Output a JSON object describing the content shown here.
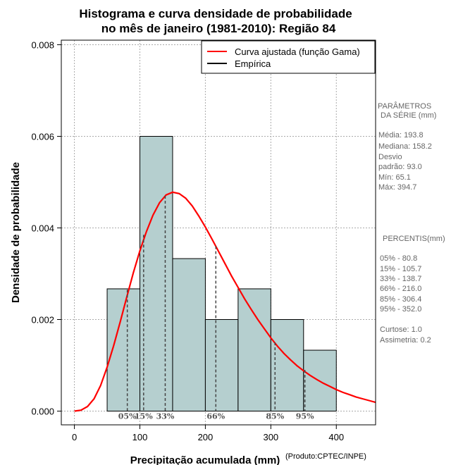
{
  "chart_data": {
    "type": "bar",
    "title_lines": [
      "Histograma e curva densidade de probabilidade",
      "no mês de janeiro (1981-2010): Região 84"
    ],
    "xlabel": "Precipitação acumulada (mm)",
    "xlabel_note": "(Produto:CPTEC/INPE)",
    "ylabel": "Densidade de probabilidade",
    "xlim": [
      -20,
      460
    ],
    "ylim": [
      -0.0003,
      0.0081
    ],
    "x_ticks": [
      0,
      100,
      200,
      300,
      400
    ],
    "x_tick_labels": [
      "0",
      "100",
      "200",
      "300",
      "400"
    ],
    "y_ticks": [
      0,
      0.002,
      0.004,
      0.006,
      0.008
    ],
    "y_tick_labels": [
      "0.000",
      "0.002",
      "0.004",
      "0.006",
      "0.008"
    ],
    "grid": true,
    "bin_edges": [
      50,
      100,
      150,
      200,
      250,
      300,
      350,
      400
    ],
    "values": [
      0.00267,
      0.006,
      0.00333,
      0.002,
      0.00267,
      0.002,
      0.00133
    ],
    "bar_color": "#b5cfcf",
    "curve": {
      "name": "Curva ajustada (função Gama)",
      "color": "#ff0000",
      "x": [
        0,
        10,
        20,
        30,
        40,
        50,
        60,
        70,
        80,
        90,
        100,
        110,
        120,
        130,
        140,
        150,
        160,
        170,
        180,
        190,
        200,
        210,
        220,
        230,
        240,
        250,
        260,
        270,
        280,
        290,
        300,
        310,
        320,
        330,
        340,
        350,
        360,
        370,
        380,
        390,
        400,
        410,
        420,
        430,
        440,
        450,
        460
      ],
      "y": [
        0.0,
        2e-05,
        0.0001,
        0.00027,
        0.00056,
        0.00096,
        0.00143,
        0.00195,
        0.00249,
        0.00302,
        0.0035,
        0.00392,
        0.00428,
        0.00455,
        0.00472,
        0.00478,
        0.00475,
        0.00465,
        0.00448,
        0.00426,
        0.00402,
        0.00376,
        0.00349,
        0.00322,
        0.00295,
        0.0027,
        0.00245,
        0.00222,
        0.002,
        0.0018,
        0.0016,
        0.00142,
        0.00126,
        0.00112,
        0.00099,
        0.00088,
        0.00078,
        0.00069,
        0.00061,
        0.00054,
        0.00047,
        0.00041,
        0.00036,
        0.00031,
        0.00027,
        0.00023,
        0.00019
      ]
    },
    "empirica": {
      "name": "Empírica",
      "color": "#000000"
    },
    "percentile_markers": [
      {
        "label": "05%",
        "x": 80.8,
        "y": 0.00265
      },
      {
        "label": "15%",
        "x": 105.7,
        "y": 0.00385
      },
      {
        "label": "33%",
        "x": 138.7,
        "y": 0.0047
      },
      {
        "label": "66%",
        "x": 216.0,
        "y": 0.0036
      },
      {
        "label": "85%",
        "x": 306.4,
        "y": 0.0015
      },
      {
        "label": "95%",
        "x": 352.0,
        "y": 0.0009
      }
    ]
  },
  "legend": {
    "items": [
      {
        "label": "Curva ajustada (função Gama)",
        "color": "#ff0000"
      },
      {
        "label": "Empírica",
        "color": "#000000"
      }
    ]
  },
  "side_panel": {
    "params_title_1": "PARÂMETROS",
    "params_title_2": "DA SÉRIE (mm)",
    "media": "Média:  193.8",
    "mediana": "Mediana:  158.2",
    "desvio_1": "Desvio",
    "desvio_2": "padrão:  93.0",
    "min": "Mín:  65.1",
    "max": "Máx:  394.7",
    "percentis_title": "PERCENTIS(mm)",
    "percentis": [
      "05% -  80.8",
      "15% -  105.7",
      "33% -  138.7",
      "66% -  216.0",
      "85% -  306.4",
      "95% -  352.0"
    ],
    "curtose": "Curtose:  1.0",
    "assimetria": "Assimetria:  0.2"
  }
}
